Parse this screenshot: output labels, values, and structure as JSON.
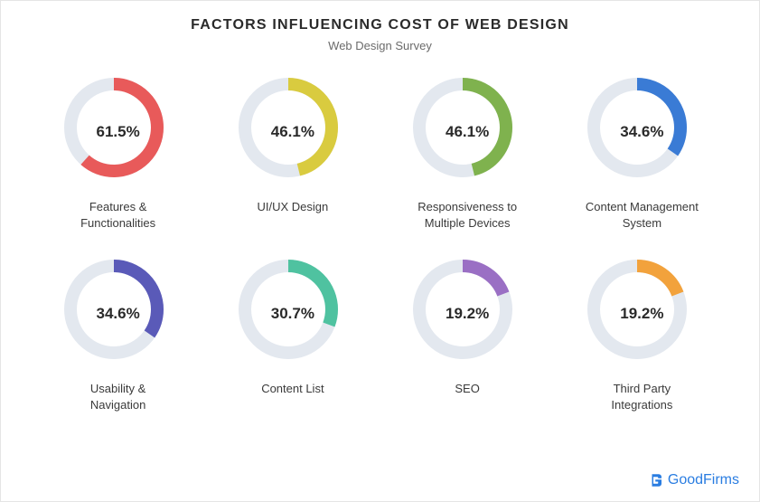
{
  "header": {
    "title": "FACTORS INFLUENCING COST OF WEB DESIGN",
    "subtitle": "Web Design Survey"
  },
  "chart": {
    "type": "donut-grid",
    "ring_bg_color": "#e3e8ef",
    "ring_thickness": 14,
    "ring_outer_radius": 55,
    "value_fontsize": 17,
    "label_fontsize": 13,
    "label_color": "#3a3a3a",
    "background_color": "#ffffff",
    "items": [
      {
        "label": "Features &\nFunctionalities",
        "value": 61.5,
        "pct_text": "61.5%",
        "color": "#e85a5a"
      },
      {
        "label": "UI/UX Design",
        "value": 46.1,
        "pct_text": "46.1%",
        "color": "#d9cb3f"
      },
      {
        "label": "Responsiveness to\nMultiple Devices",
        "value": 46.1,
        "pct_text": "46.1%",
        "color": "#7fb24e"
      },
      {
        "label": "Content Management\nSystem",
        "value": 34.6,
        "pct_text": "34.6%",
        "color": "#3a7bd5"
      },
      {
        "label": "Usability &\nNavigation",
        "value": 34.6,
        "pct_text": "34.6%",
        "color": "#5a5ab8"
      },
      {
        "label": "Content List",
        "value": 30.7,
        "pct_text": "30.7%",
        "color": "#4fc2a0"
      },
      {
        "label": "SEO",
        "value": 19.2,
        "pct_text": "19.2%",
        "color": "#9a6fc4"
      },
      {
        "label": "Third Party\nIntegrations",
        "value": 19.2,
        "pct_text": "19.2%",
        "color": "#f2a23c"
      }
    ]
  },
  "brand": {
    "name": "GoodFirms",
    "color": "#2a7de1"
  }
}
